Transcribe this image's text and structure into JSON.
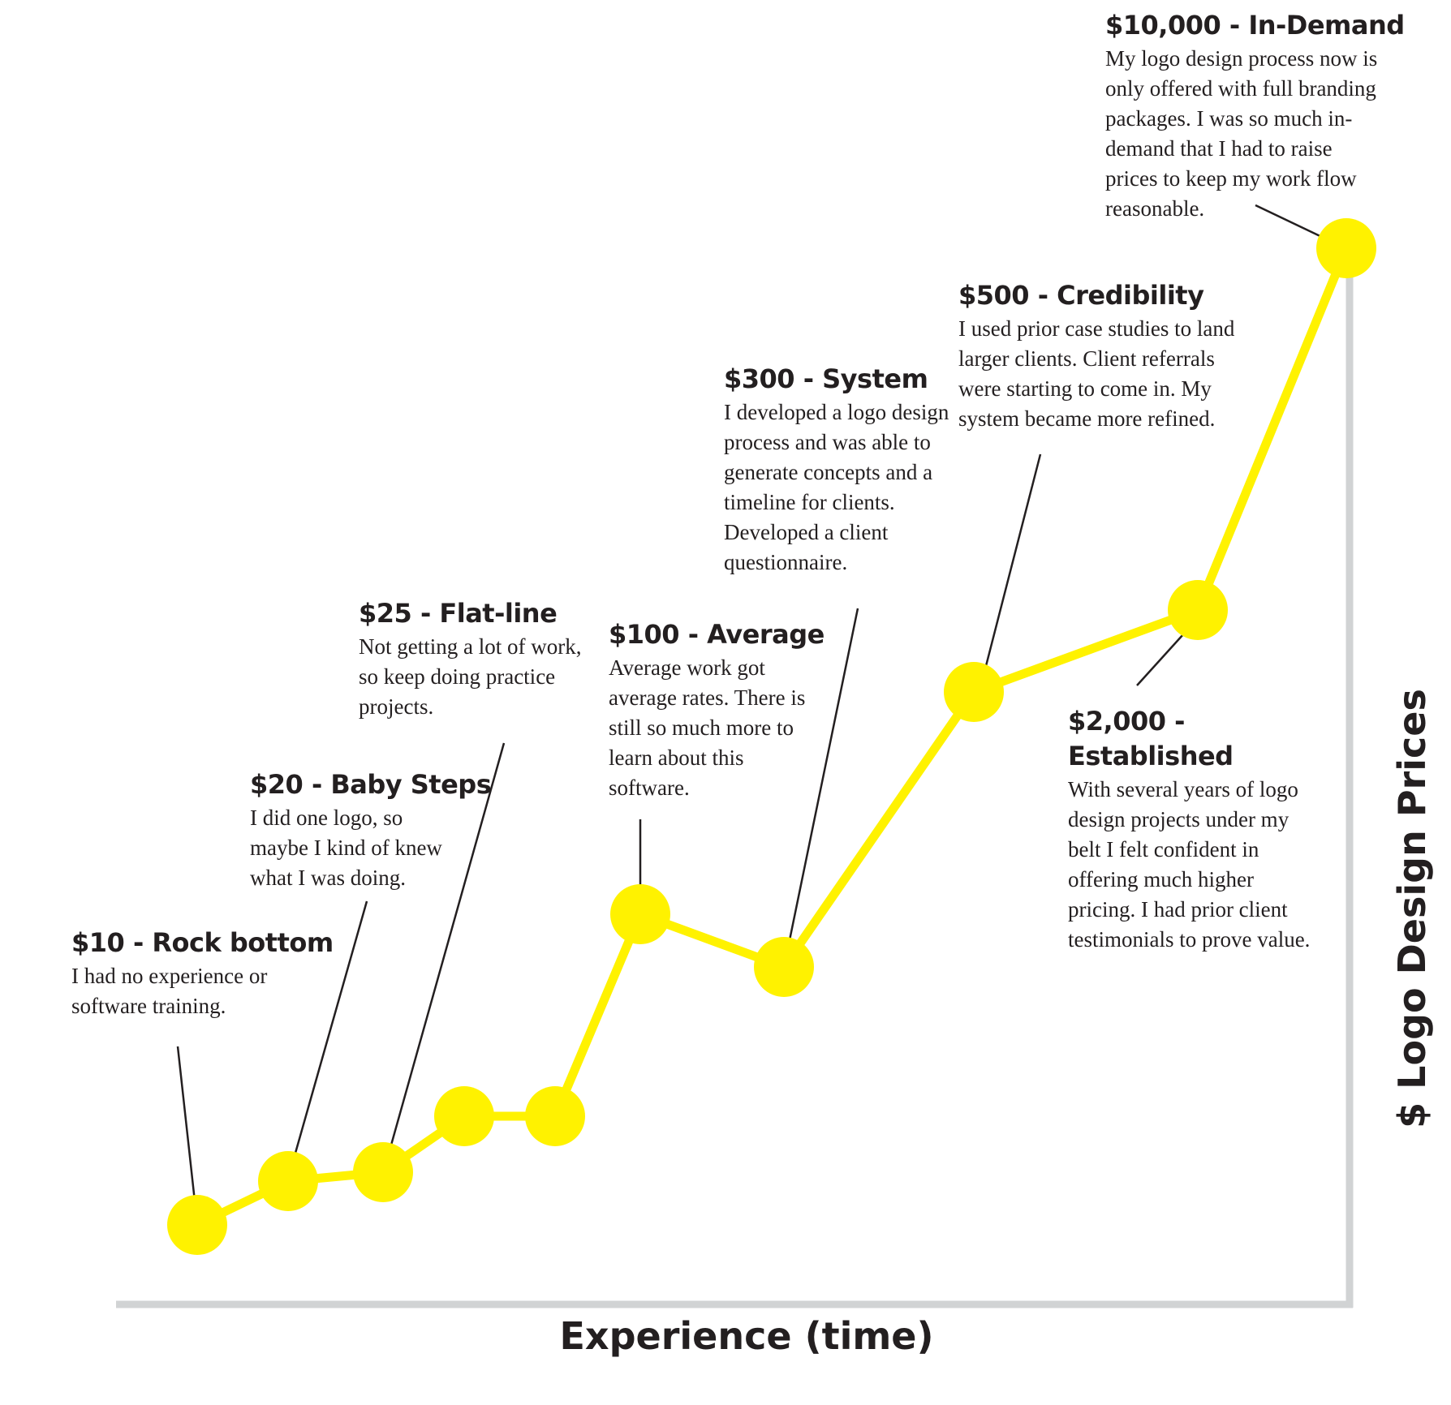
{
  "chart_data": {
    "type": "line",
    "title": "",
    "xlabel": "Experience (time)",
    "ylabel": "$  Logo Design Prices",
    "line_color": "#fff200",
    "axis_color": "#d1d3d4",
    "leader_color": "#231f20",
    "series": [
      {
        "values": [
          10,
          20,
          25,
          25,
          25,
          100,
          300,
          500,
          2000,
          10000
        ]
      }
    ],
    "annotations": [
      {
        "title": "$10 - Rock bottom",
        "text": "I had no experience or software training."
      },
      {
        "title": "$20 - Baby Steps",
        "text": "I did one logo, so maybe I kind of knew what I was doing."
      },
      {
        "title": "$25 - Flat-line",
        "text": "Not getting a lot of work, so keep doing practice projects."
      },
      {
        "title": "$100 - Average",
        "text": "Average work got average rates. There is still so much more to learn about this software."
      },
      {
        "title": "$300 - System",
        "text": "I developed a logo design process and was able to generate concepts and a timeline for clients. Developed a client questionnaire."
      },
      {
        "title": "$500 - Credibility",
        "text": "I used prior case studies to land larger clients. Client referrals were starting to come in.  My system became more refined."
      },
      {
        "title": "$2,000 - Established",
        "text": "With several years of logo design projects under my belt I felt confident in offering much higher pricing. I had prior client testimonials to prove value."
      },
      {
        "title": "$10,000 - In-Demand",
        "text": "My logo design process now is only offered with full branding packages. I was so much in-demand that I had to raise prices to keep my work flow reasonable."
      }
    ]
  }
}
